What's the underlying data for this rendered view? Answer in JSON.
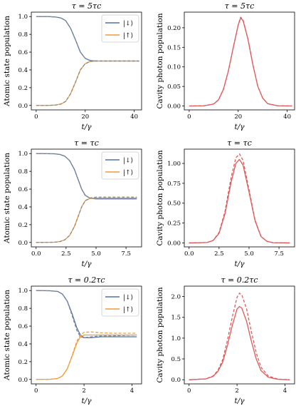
{
  "colors": {
    "blue": "#4c72b0",
    "orange": "#f39c3a",
    "red": "#e05a5a",
    "gray": "#888888"
  },
  "chart_data": [
    {
      "type": "line",
      "title": "τ = 5τc",
      "xlabel": "t/γ",
      "ylabel": "Atomic state population",
      "xlim": [
        -2,
        43
      ],
      "ylim": [
        -0.05,
        1.05
      ],
      "xticks": [
        0,
        20,
        40
      ],
      "xtick_labels": [
        "0",
        "20",
        "40"
      ],
      "yticks": [
        0,
        0.2,
        0.4,
        0.6,
        0.8,
        1.0
      ],
      "ytick_labels": [
        "0.0",
        "0.2",
        "0.4",
        "0.6",
        "0.8",
        "1.0"
      ],
      "legend": {
        "position": "top-right",
        "entries": [
          {
            "label": "|↓⟩",
            "color": "#4c72b0"
          },
          {
            "label": "|↑⟩",
            "color": "#f39c3a"
          }
        ]
      },
      "series": [
        {
          "name": "|↓⟩",
          "style": "solid",
          "color": "#4c72b0",
          "x": [
            0,
            5,
            8,
            10,
            12,
            14,
            16,
            18,
            20,
            22,
            25,
            30,
            35,
            42
          ],
          "y": [
            1.0,
            1.0,
            0.995,
            0.985,
            0.955,
            0.87,
            0.74,
            0.6,
            0.53,
            0.505,
            0.5,
            0.5,
            0.5,
            0.5
          ]
        },
        {
          "style": "dashed",
          "color": "#888888",
          "x": [
            0,
            5,
            8,
            10,
            12,
            14,
            16,
            18,
            20,
            22,
            25,
            30,
            35,
            42
          ],
          "y": [
            1.0,
            1.0,
            0.995,
            0.985,
            0.955,
            0.87,
            0.74,
            0.6,
            0.53,
            0.505,
            0.5,
            0.5,
            0.5,
            0.5
          ]
        },
        {
          "name": "|↑⟩",
          "style": "solid",
          "color": "#f39c3a",
          "x": [
            0,
            5,
            8,
            10,
            12,
            14,
            16,
            18,
            20,
            22,
            25,
            30,
            35,
            42
          ],
          "y": [
            0.0,
            0.0,
            0.005,
            0.015,
            0.045,
            0.13,
            0.26,
            0.4,
            0.47,
            0.495,
            0.5,
            0.5,
            0.5,
            0.5
          ]
        },
        {
          "style": "dashed",
          "color": "#888888",
          "x": [
            0,
            5,
            8,
            10,
            12,
            14,
            16,
            18,
            20,
            22,
            25,
            30,
            35,
            42
          ],
          "y": [
            0.0,
            0.0,
            0.005,
            0.015,
            0.045,
            0.13,
            0.26,
            0.4,
            0.47,
            0.495,
            0.5,
            0.5,
            0.5,
            0.5
          ]
        }
      ]
    },
    {
      "type": "line",
      "title": "τ = 5τc",
      "xlabel": "t/γ",
      "ylabel": "Cavity photon population",
      "xlim": [
        -2,
        43
      ],
      "ylim": [
        -0.01,
        0.24
      ],
      "xticks": [
        0,
        20,
        40
      ],
      "xtick_labels": [
        "0",
        "20",
        "40"
      ],
      "yticks": [
        0,
        0.05,
        0.1,
        0.15,
        0.2
      ],
      "ytick_labels": [
        "0.00",
        "0.05",
        "0.10",
        "0.15",
        "0.20"
      ],
      "series": [
        {
          "style": "solid",
          "color": "#e05a5a",
          "x": [
            0,
            6,
            10,
            12,
            14,
            16,
            18,
            20,
            21,
            22,
            24,
            26,
            28,
            30,
            32,
            36,
            42
          ],
          "y": [
            0,
            0.0005,
            0.005,
            0.016,
            0.043,
            0.09,
            0.15,
            0.207,
            0.225,
            0.218,
            0.17,
            0.105,
            0.05,
            0.02,
            0.006,
            0.0005,
            0
          ]
        },
        {
          "style": "dashed",
          "color": "#e05a5a",
          "x": [
            0,
            6,
            10,
            12,
            14,
            16,
            18,
            20,
            21,
            22,
            24,
            26,
            28,
            30,
            32,
            36,
            42
          ],
          "y": [
            0,
            0.0005,
            0.005,
            0.016,
            0.043,
            0.09,
            0.15,
            0.208,
            0.227,
            0.22,
            0.171,
            0.106,
            0.05,
            0.02,
            0.006,
            0.0005,
            0
          ]
        }
      ]
    },
    {
      "type": "line",
      "title": "τ = τc",
      "xlabel": "t/γ",
      "ylabel": "Atomic state population",
      "xlim": [
        -0.4,
        8.8
      ],
      "ylim": [
        -0.05,
        1.05
      ],
      "xticks": [
        0,
        2.5,
        5,
        7.5
      ],
      "xtick_labels": [
        "0.0",
        "2.5",
        "5.0",
        "7.5"
      ],
      "yticks": [
        0,
        0.2,
        0.4,
        0.6,
        0.8,
        1.0
      ],
      "ytick_labels": [
        "0.0",
        "0.2",
        "0.4",
        "0.6",
        "0.8",
        "1.0"
      ],
      "legend": {
        "position": "top-right",
        "entries": [
          {
            "label": "|↓⟩",
            "color": "#4c72b0"
          },
          {
            "label": "|↑⟩",
            "color": "#f39c3a"
          }
        ]
      },
      "series": [
        {
          "name": "|↓⟩",
          "style": "solid",
          "color": "#4c72b0",
          "x": [
            0,
            1.5,
            2.0,
            2.4,
            2.8,
            3.2,
            3.5,
            3.8,
            4.1,
            4.5,
            5.0,
            6.0,
            8.4
          ],
          "y": [
            1.0,
            0.998,
            0.99,
            0.97,
            0.92,
            0.82,
            0.71,
            0.6,
            0.53,
            0.497,
            0.49,
            0.49,
            0.49
          ]
        },
        {
          "style": "dashed",
          "color": "#888888",
          "x": [
            0,
            1.5,
            2.0,
            2.4,
            2.8,
            3.2,
            3.5,
            3.8,
            4.1,
            4.5,
            5.0,
            6.0,
            8.4
          ],
          "y": [
            1.0,
            0.998,
            0.99,
            0.97,
            0.92,
            0.82,
            0.71,
            0.6,
            0.53,
            0.5,
            0.5,
            0.5,
            0.5
          ]
        },
        {
          "name": "|↑⟩",
          "style": "solid",
          "color": "#f39c3a",
          "x": [
            0,
            1.5,
            2.0,
            2.4,
            2.8,
            3.2,
            3.5,
            3.8,
            4.1,
            4.5,
            5.0,
            6.0,
            8.4
          ],
          "y": [
            0.0,
            0.002,
            0.01,
            0.03,
            0.08,
            0.18,
            0.29,
            0.4,
            0.47,
            0.495,
            0.5,
            0.5,
            0.5
          ]
        },
        {
          "style": "dashed",
          "color": "#888888",
          "x": [
            0,
            1.5,
            2.0,
            2.4,
            2.8,
            3.2,
            3.5,
            3.8,
            4.1,
            4.5,
            5.0,
            6.0,
            8.4
          ],
          "y": [
            0.0,
            0.002,
            0.01,
            0.03,
            0.08,
            0.18,
            0.29,
            0.4,
            0.47,
            0.5,
            0.51,
            0.51,
            0.51
          ]
        }
      ]
    },
    {
      "type": "line",
      "title": "τ = τc",
      "xlabel": "t/γ",
      "ylabel": "Cavity photon population",
      "xlim": [
        -0.4,
        8.8
      ],
      "ylim": [
        -0.05,
        1.18
      ],
      "xticks": [
        0,
        2.5,
        5,
        7.5
      ],
      "xtick_labels": [
        "0.0",
        "2.5",
        "5.0",
        "7.5"
      ],
      "yticks": [
        0,
        0.25,
        0.5,
        0.75,
        1.0
      ],
      "ytick_labels": [
        "0.00",
        "0.25",
        "0.50",
        "0.75",
        "1.00"
      ],
      "series": [
        {
          "style": "solid",
          "color": "#e05a5a",
          "x": [
            0,
            1.5,
            2.0,
            2.5,
            3.0,
            3.5,
            3.9,
            4.2,
            4.5,
            5.0,
            5.5,
            6.0,
            6.5,
            7.0,
            8.4
          ],
          "y": [
            0,
            0.005,
            0.03,
            0.12,
            0.37,
            0.76,
            1.0,
            1.05,
            0.98,
            0.64,
            0.28,
            0.08,
            0.02,
            0.003,
            0
          ]
        },
        {
          "style": "dashed",
          "color": "#e05a5a",
          "x": [
            0,
            1.5,
            2.0,
            2.5,
            3.0,
            3.5,
            3.9,
            4.2,
            4.5,
            5.0,
            5.5,
            6.0,
            6.5,
            7.0,
            8.4
          ],
          "y": [
            0,
            0.005,
            0.03,
            0.13,
            0.4,
            0.82,
            1.07,
            1.12,
            1.04,
            0.67,
            0.29,
            0.08,
            0.02,
            0.003,
            0
          ]
        }
      ]
    },
    {
      "type": "line",
      "title": "τ = 0.2τc",
      "xlabel": "t/γ",
      "ylabel": "Atomic state population",
      "xlim": [
        -0.2,
        4.4
      ],
      "ylim": [
        -0.05,
        1.05
      ],
      "xticks": [
        0,
        2,
        4
      ],
      "xtick_labels": [
        "0",
        "2",
        "4"
      ],
      "yticks": [
        0,
        0.2,
        0.4,
        0.6,
        0.8,
        1.0
      ],
      "ytick_labels": [
        "0.0",
        "0.2",
        "0.4",
        "0.6",
        "0.8",
        "1.0"
      ],
      "legend": {
        "position": "top-right",
        "entries": [
          {
            "label": "|↓⟩",
            "color": "#4c72b0"
          },
          {
            "label": "|↑⟩",
            "color": "#f39c3a"
          }
        ]
      },
      "series": [
        {
          "name": "|↓⟩",
          "style": "solid",
          "color": "#4c72b0",
          "x": [
            0,
            0.6,
            0.9,
            1.1,
            1.3,
            1.5,
            1.7,
            1.85,
            2.0,
            2.3,
            2.7,
            3.2,
            4.2
          ],
          "y": [
            1.0,
            0.998,
            0.99,
            0.96,
            0.88,
            0.74,
            0.58,
            0.5,
            0.47,
            0.47,
            0.48,
            0.48,
            0.48
          ]
        },
        {
          "style": "dashed",
          "color": "#888888",
          "x": [
            0,
            0.6,
            0.9,
            1.1,
            1.3,
            1.5,
            1.7,
            1.85,
            2.0,
            2.3,
            2.7,
            3.2,
            4.2
          ],
          "y": [
            1.0,
            0.998,
            0.99,
            0.96,
            0.88,
            0.72,
            0.55,
            0.48,
            0.47,
            0.48,
            0.49,
            0.49,
            0.5
          ]
        },
        {
          "name": "|↑⟩",
          "style": "solid",
          "color": "#f39c3a",
          "x": [
            0,
            0.6,
            0.9,
            1.1,
            1.3,
            1.5,
            1.7,
            1.85,
            2.0,
            2.3,
            2.7,
            3.2,
            4.2
          ],
          "y": [
            0.0,
            0.002,
            0.01,
            0.04,
            0.12,
            0.26,
            0.41,
            0.48,
            0.5,
            0.5,
            0.5,
            0.5,
            0.5
          ]
        },
        {
          "style": "dashed",
          "color": "#f39c3a",
          "x": [
            0,
            0.6,
            0.9,
            1.1,
            1.3,
            1.5,
            1.7,
            1.85,
            2.0,
            2.3,
            2.7,
            3.2,
            4.2
          ],
          "y": [
            0.0,
            0.002,
            0.01,
            0.04,
            0.12,
            0.27,
            0.43,
            0.5,
            0.53,
            0.535,
            0.525,
            0.52,
            0.52
          ]
        }
      ]
    },
    {
      "type": "line",
      "title": "τ = 0.2τc",
      "xlabel": "t/γ",
      "ylabel": "Cavity photon population",
      "xlim": [
        -0.2,
        4.4
      ],
      "ylim": [
        -0.1,
        2.25
      ],
      "xticks": [
        0,
        2,
        4
      ],
      "xtick_labels": [
        "0",
        "2",
        "4"
      ],
      "yticks": [
        0,
        0.5,
        1.0,
        1.5,
        2.0
      ],
      "ytick_labels": [
        "0.0",
        "0.5",
        "1.0",
        "1.5",
        "2.0"
      ],
      "series": [
        {
          "style": "solid",
          "color": "#e05a5a",
          "x": [
            0,
            0.7,
            1.0,
            1.2,
            1.4,
            1.6,
            1.8,
            2.0,
            2.1,
            2.2,
            2.4,
            2.6,
            2.8,
            3.0,
            3.3,
            3.7,
            4.2
          ],
          "y": [
            0,
            0.02,
            0.08,
            0.2,
            0.42,
            0.82,
            1.3,
            1.7,
            1.76,
            1.72,
            1.4,
            0.92,
            0.5,
            0.22,
            0.06,
            0.01,
            0
          ]
        },
        {
          "style": "dashed",
          "color": "#e05a5a",
          "x": [
            0,
            0.7,
            1.0,
            1.2,
            1.4,
            1.6,
            1.8,
            2.0,
            2.1,
            2.2,
            2.4,
            2.6,
            2.8,
            3.0,
            3.3,
            3.7,
            4.2
          ],
          "y": [
            0,
            0.02,
            0.09,
            0.22,
            0.48,
            0.95,
            1.5,
            1.98,
            2.08,
            2.04,
            1.7,
            1.15,
            0.65,
            0.3,
            0.09,
            0.015,
            0
          ]
        }
      ]
    }
  ]
}
